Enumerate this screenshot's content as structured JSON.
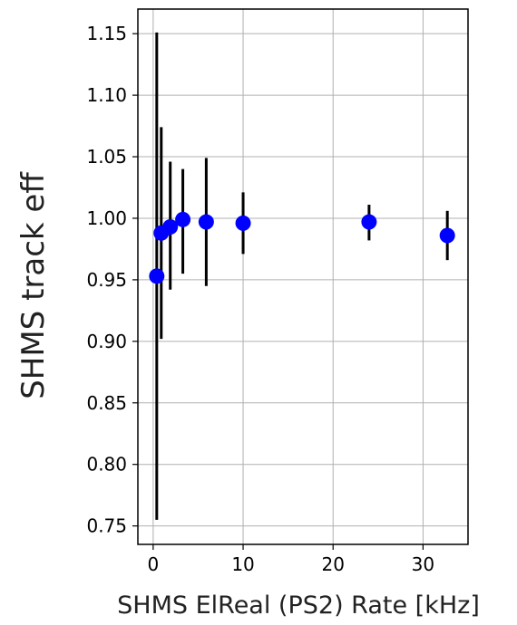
{
  "chart_data": {
    "type": "scatter",
    "title": "",
    "xlabel": "SHMS ElReal (PS2) Rate [kHz]",
    "ylabel": "SHMS track eff",
    "xlim": [
      -1.7,
      35
    ],
    "ylim": [
      0.735,
      1.17
    ],
    "grid": true,
    "x_ticks": [
      0,
      10,
      20,
      30
    ],
    "y_ticks": [
      0.75,
      0.8,
      0.85,
      0.9,
      0.95,
      1.0,
      1.05,
      1.1,
      1.15
    ],
    "x_tick_labels": [
      "0",
      "10",
      "20",
      "30"
    ],
    "y_tick_labels": [
      "0.75",
      "0.80",
      "0.85",
      "0.90",
      "0.95",
      "1.00",
      "1.05",
      "1.10",
      "1.15"
    ],
    "series": [
      {
        "marker_color": "#0000ff",
        "errorbar_color": "#000000",
        "points": [
          {
            "x": 0.4,
            "y": 0.953,
            "yerr_low": 0.198,
            "yerr_high": 0.198
          },
          {
            "x": 0.9,
            "y": 0.988,
            "yerr_low": 0.086,
            "yerr_high": 0.086
          },
          {
            "x": 1.9,
            "y": 0.993,
            "yerr_low": 0.051,
            "yerr_high": 0.053
          },
          {
            "x": 3.3,
            "y": 0.999,
            "yerr_low": 0.044,
            "yerr_high": 0.041
          },
          {
            "x": 5.9,
            "y": 0.997,
            "yerr_low": 0.052,
            "yerr_high": 0.052
          },
          {
            "x": 10.0,
            "y": 0.996,
            "yerr_low": 0.025,
            "yerr_high": 0.025
          },
          {
            "x": 24.0,
            "y": 0.997,
            "yerr_low": 0.015,
            "yerr_high": 0.014
          },
          {
            "x": 32.7,
            "y": 0.986,
            "yerr_low": 0.02,
            "yerr_high": 0.02
          }
        ]
      }
    ]
  }
}
